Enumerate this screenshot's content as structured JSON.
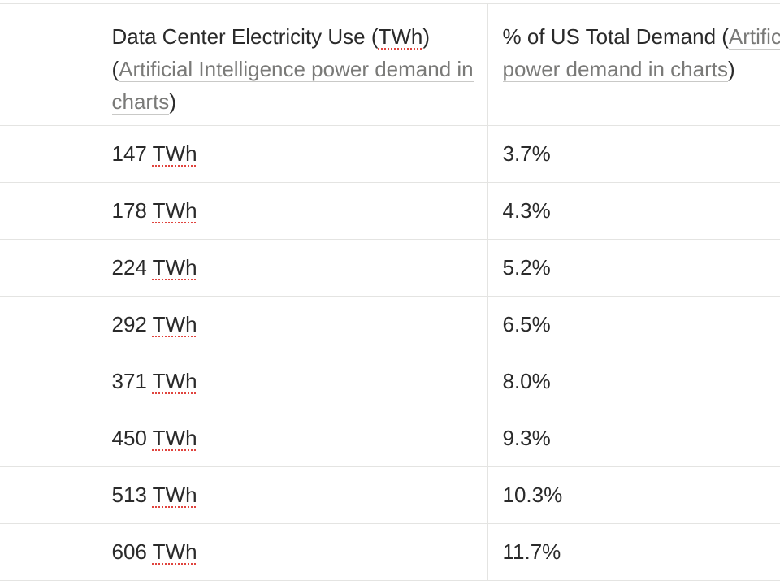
{
  "table": {
    "headers": [
      {
        "main": "",
        "link": ""
      },
      {
        "main_prefix": "Data Center Electricity Use (",
        "main_unit": "TWh",
        "main_suffix": ")",
        "open_paren": "(",
        "link": "Artificial Intelligence power demand in charts",
        "close_paren": ")"
      },
      {
        "main_prefix": "% of US Total Demand (",
        "link": "Artificial Intelligence power demand in charts",
        "close_paren": ")"
      }
    ],
    "rows": [
      {
        "label": "",
        "use_value": "147",
        "use_unit": "TWh",
        "pct": "3.7%"
      },
      {
        "label": "",
        "use_value": "178",
        "use_unit": "TWh",
        "pct": "4.3%"
      },
      {
        "label": "",
        "use_value": "224",
        "use_unit": "TWh",
        "pct": "5.2%"
      },
      {
        "label": "",
        "use_value": "292",
        "use_unit": "TWh",
        "pct": "6.5%"
      },
      {
        "label": "",
        "use_value": "371",
        "use_unit": "TWh",
        "pct": "8.0%"
      },
      {
        "label": "",
        "use_value": "450",
        "use_unit": "TWh",
        "pct": "9.3%"
      },
      {
        "label": "",
        "use_value": "513",
        "use_unit": "TWh",
        "pct": "10.3%"
      },
      {
        "label": "",
        "use_value": "606",
        "use_unit": "TWh",
        "pct": "11.7%"
      }
    ]
  }
}
